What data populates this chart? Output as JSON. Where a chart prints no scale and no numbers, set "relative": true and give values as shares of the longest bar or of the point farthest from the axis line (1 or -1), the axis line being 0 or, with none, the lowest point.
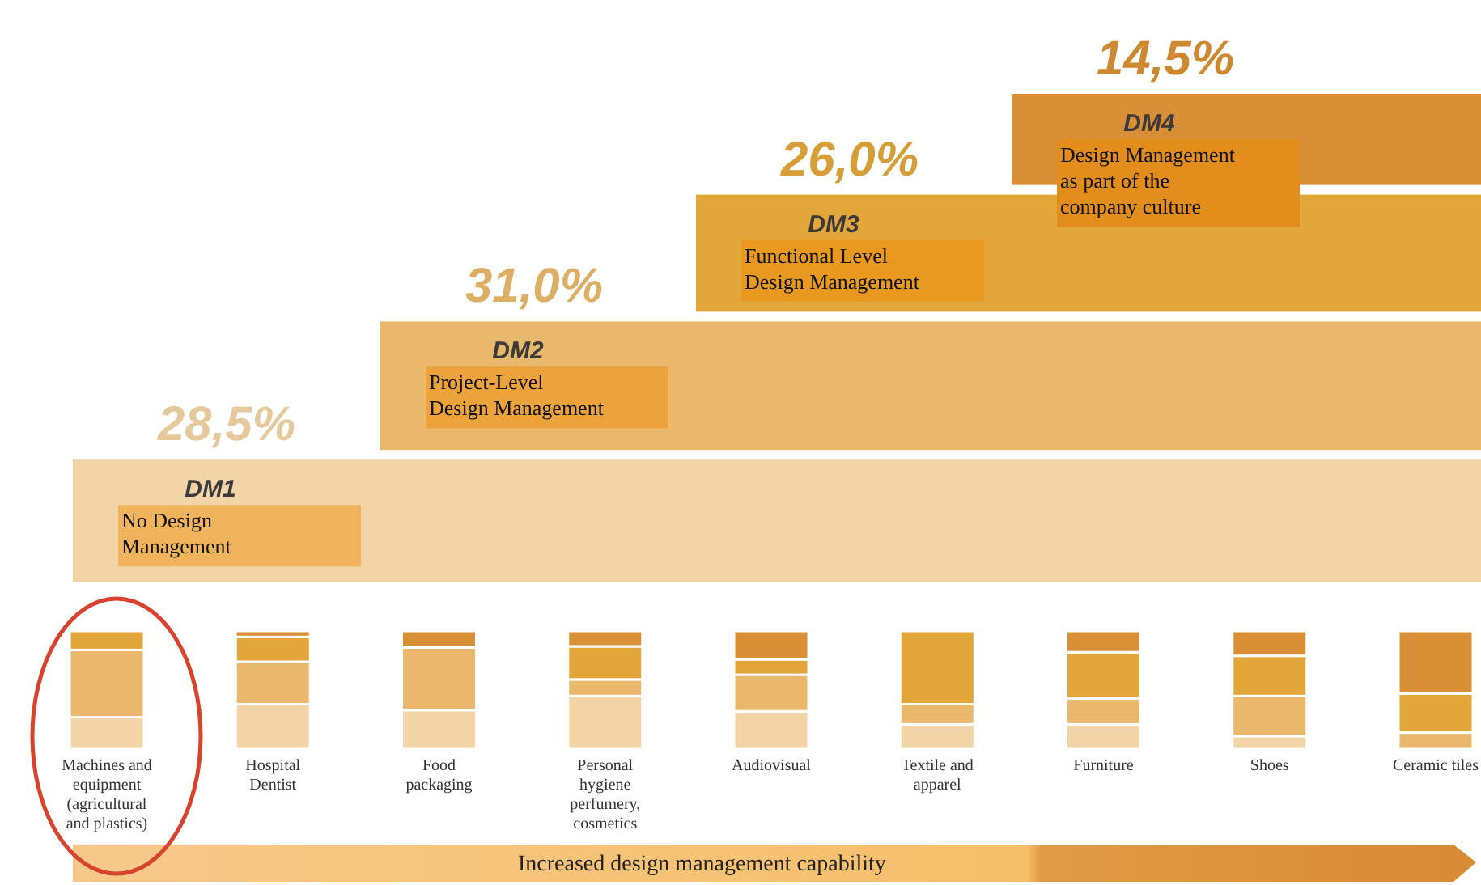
{
  "chart_data": [
    {
      "type": "other",
      "categories": [
        "DM1",
        "DM2",
        "DM3",
        "DM4"
      ],
      "values": [
        28.5,
        31.0,
        26.0,
        14.5
      ],
      "value_labels": [
        "28,5%",
        "31,0%",
        "26,0%",
        "14,5%"
      ],
      "colors": [
        "#f2d4a6",
        "#e9b86c",
        "#e3a63a",
        "#d98f35"
      ],
      "annotations": [
        "No Design Management",
        "Project-Level Design Management",
        "Functional Level Design Management",
        "Design Management as part of the company culture"
      ]
    },
    {
      "type": "bar",
      "stacked": true,
      "relative": true,
      "categories": [
        "Machines and equipment (agricultural and plastics)",
        "Hospital Dentist",
        "Food packaging",
        "Personal hygiene perfumery, cosmetics",
        "Audiovisual",
        "Textile and apparel",
        "Furniture",
        "Shoes",
        "Ceramic tiles"
      ],
      "series": [
        {
          "color": "#f2d4a6",
          "values": [
            0.27,
            0.38,
            0.33,
            0.45,
            0.32,
            0.21,
            0.21,
            0.11,
            0
          ]
        },
        {
          "color": "#e9b86c",
          "values": [
            0.57,
            0.36,
            0.53,
            0.14,
            0.31,
            0.17,
            0.22,
            0.34,
            0.14
          ]
        },
        {
          "color": "#e3a63a",
          "values": [
            0.16,
            0.21,
            0,
            0.28,
            0.13,
            0.62,
            0.39,
            0.34,
            0.33
          ]
        },
        {
          "color": "#d98f35",
          "values": [
            0,
            0.05,
            0.14,
            0.13,
            0.24,
            0,
            0.18,
            0.21,
            0.53
          ]
        }
      ],
      "annotations": [
        "Increased design management capability"
      ]
    }
  ]
}
